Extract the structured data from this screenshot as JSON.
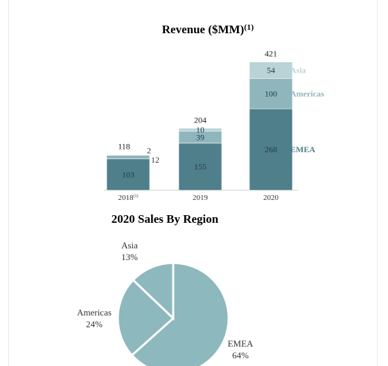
{
  "chart_data": [
    {
      "type": "bar",
      "stacked": true,
      "title": "Revenue ($MM)",
      "title_superscript": "(1)",
      "categories": [
        "2018",
        "2019",
        "2020"
      ],
      "category_superscripts": [
        "(1)",
        "",
        ""
      ],
      "series": [
        {
          "name": "EMEA",
          "values": [
            103,
            155,
            268
          ],
          "color": "#4f7f8b"
        },
        {
          "name": "Americas",
          "values": [
            12,
            39,
            100
          ],
          "color": "#8fb6bc"
        },
        {
          "name": "Asia",
          "values": [
            2,
            10,
            54
          ],
          "color": "#b9d3d6"
        }
      ],
      "totals": [
        118,
        204,
        421
      ],
      "legend_placement": "right",
      "grid": false
    },
    {
      "type": "pie",
      "title": "2020 Sales By Region",
      "slices": [
        {
          "name": "EMEA",
          "value": 64,
          "label": "64%",
          "color": "#8db8bd"
        },
        {
          "name": "Americas",
          "value": 24,
          "label": "24%",
          "color": "#8db8bd"
        },
        {
          "name": "Asia",
          "value": 13,
          "label": "13%",
          "color": "#8db8bd"
        }
      ]
    }
  ]
}
